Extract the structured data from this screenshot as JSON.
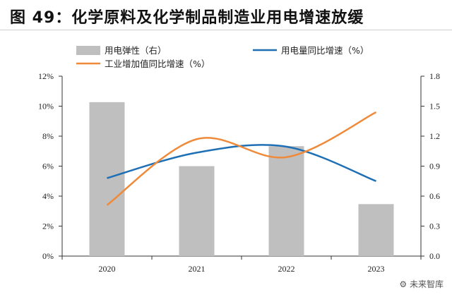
{
  "title": "图  49：化学原料及化学制品制造业用电增速放缓",
  "watermark": "未来智库",
  "chart_data": {
    "type": "bar",
    "categories": [
      "2020",
      "2021",
      "2022",
      "2023"
    ],
    "series": [
      {
        "name": "用电弹性（右）",
        "type": "bar",
        "axis": "right",
        "color": "#bfbfbf",
        "values": [
          1.54,
          0.9,
          1.1,
          0.52
        ]
      },
      {
        "name": "用电量同比增速（%）",
        "type": "line",
        "axis": "left",
        "color": "#1f6fb5",
        "values": [
          5.2,
          6.9,
          7.3,
          5.0
        ]
      },
      {
        "name": "工业增加值同比增速（%）",
        "type": "line",
        "axis": "left",
        "color": "#ef8a3a",
        "values": [
          3.4,
          7.8,
          6.6,
          9.6
        ]
      }
    ],
    "y_left": {
      "min": 0,
      "max": 12,
      "ticks": [
        "0%",
        "2%",
        "4%",
        "6%",
        "8%",
        "10%",
        "12%"
      ]
    },
    "y_right": {
      "min": 0,
      "max": 1.8,
      "ticks": [
        "0.0",
        "0.3",
        "0.6",
        "0.9",
        "1.2",
        "1.5",
        "1.8"
      ]
    },
    "legend_position": "top",
    "grid": false
  }
}
